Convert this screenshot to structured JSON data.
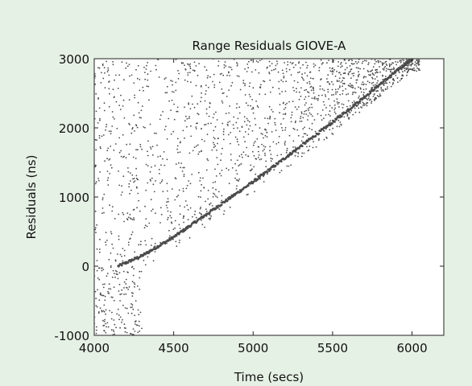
{
  "chart_data": {
    "type": "scatter",
    "title": "Range Residuals GIOVE-A",
    "xlabel": "Time (secs)",
    "ylabel": "Residuals (ns)",
    "xlim": [
      4000,
      6200
    ],
    "ylim": [
      -1000,
      3000
    ],
    "xticks": [
      4000,
      4500,
      5000,
      5500,
      6000
    ],
    "yticks": [
      -1000,
      0,
      1000,
      2000,
      3000
    ],
    "xtick_labels": [
      "4000",
      "4500",
      "5000",
      "5500",
      "6000"
    ],
    "ytick_labels": [
      "-1000",
      "0",
      "1000",
      "2000",
      "3000"
    ],
    "grid": false,
    "colors": {
      "background": "#e6f1e5",
      "plot_area": "#ffffff",
      "points": "#4a4a4a"
    },
    "series": [
      {
        "trend_line": {
          "x": [
            4150,
            4300,
            4500,
            5000,
            5500,
            6000
          ],
          "y": [
            0,
            150,
            420,
            1220,
            2080,
            3000
          ]
        },
        "clustered_noise": {
          "x_range": [
            4000,
            6050
          ],
          "y_max": 3000,
          "approx_points": 1600
        },
        "negative_noise": {
          "x_range": [
            4000,
            4300
          ],
          "y_range": [
            -1000,
            0
          ],
          "approx_points": 160
        }
      }
    ]
  }
}
